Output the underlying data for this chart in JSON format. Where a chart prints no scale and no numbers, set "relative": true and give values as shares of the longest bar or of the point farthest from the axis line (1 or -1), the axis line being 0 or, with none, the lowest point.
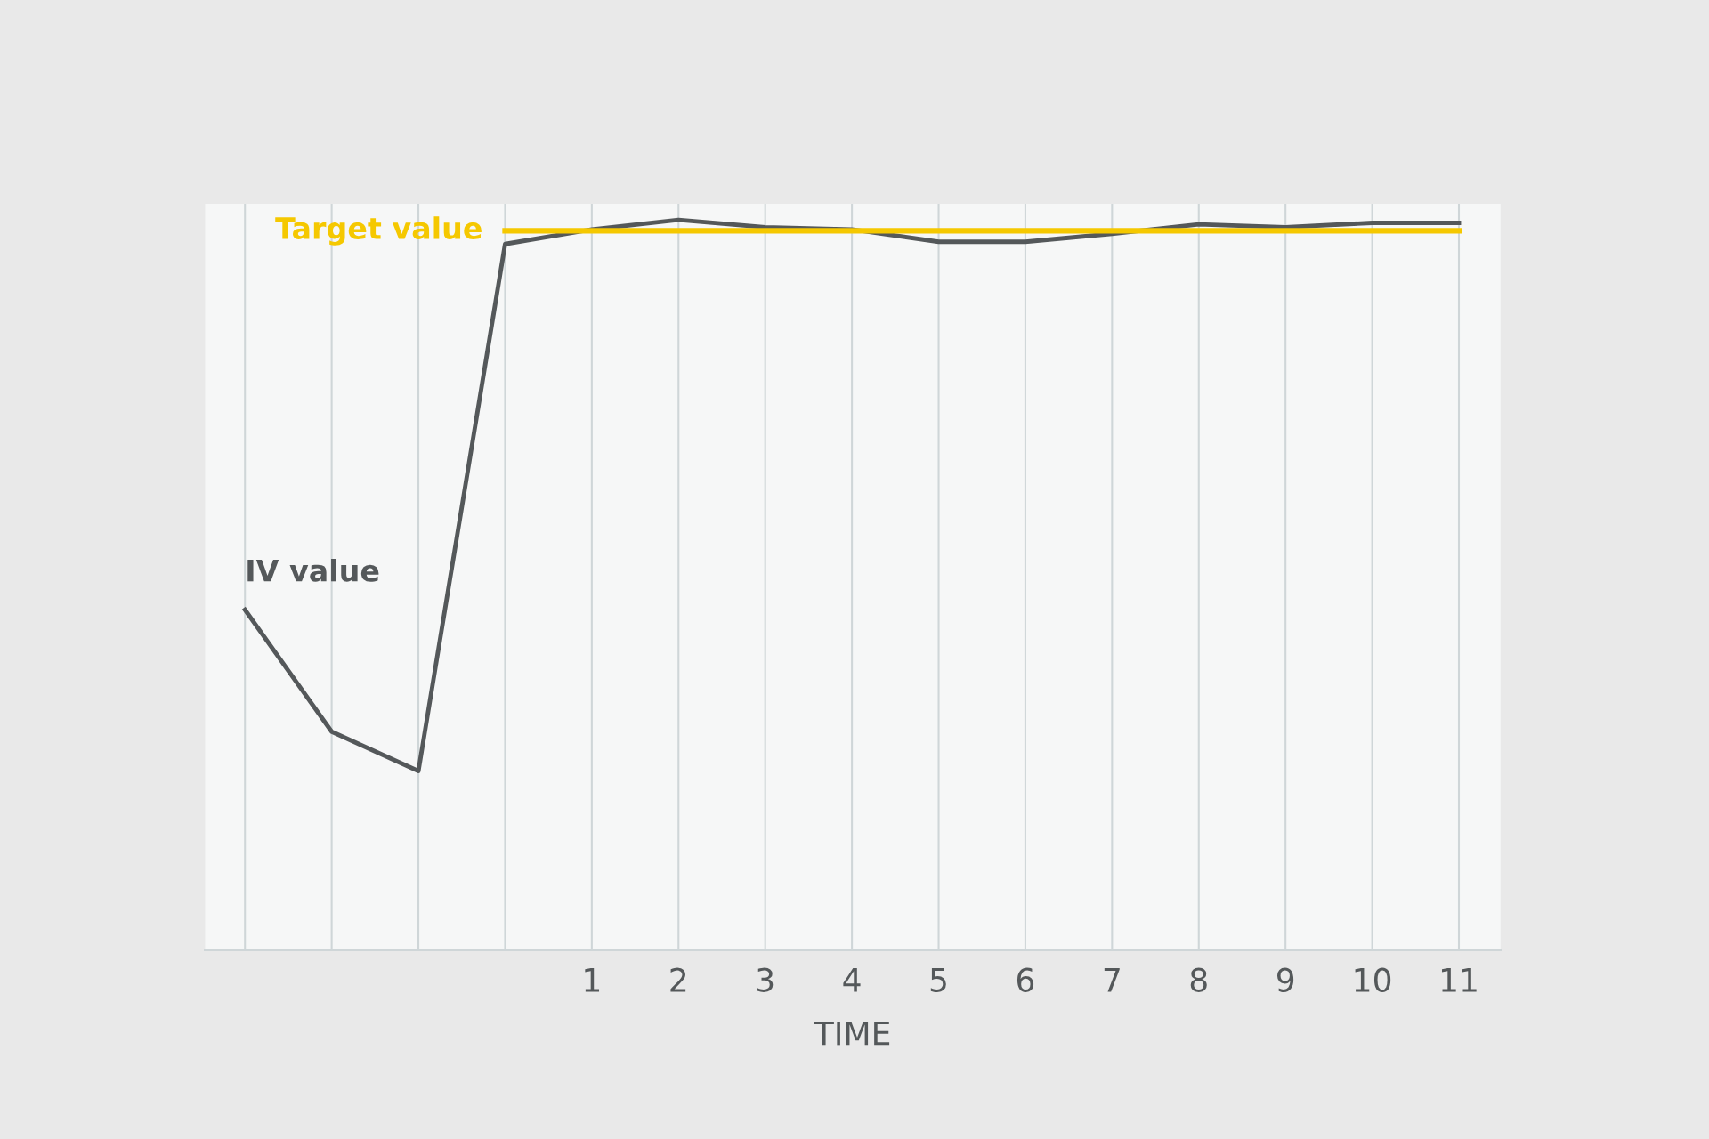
{
  "chart_data": {
    "type": "line",
    "relative": true,
    "xlabel": "TIME",
    "grid": "x",
    "legend": false,
    "marker": "none",
    "line_style": "solid",
    "categories": [
      null,
      null,
      null,
      null,
      "1",
      "2",
      "3",
      "4",
      "5",
      "6",
      "7",
      "8",
      "9",
      "10",
      "11"
    ],
    "series": [
      {
        "name": "IV value",
        "color": "#54585a",
        "values": [
          0.466,
          0.299,
          0.245,
          0.967,
          0.987,
          1,
          0.99,
          0.987,
          0.97,
          0.97,
          0.981,
          0.994,
          0.99,
          0.996,
          0.996
        ]
      },
      {
        "name": "Target value",
        "color": "#f5c800",
        "values": [
          null,
          null,
          null,
          0.985,
          0.985,
          0.985,
          0.985,
          0.985,
          0.985,
          0.985,
          0.985,
          0.985,
          0.985,
          0.985,
          0.985
        ]
      }
    ]
  }
}
